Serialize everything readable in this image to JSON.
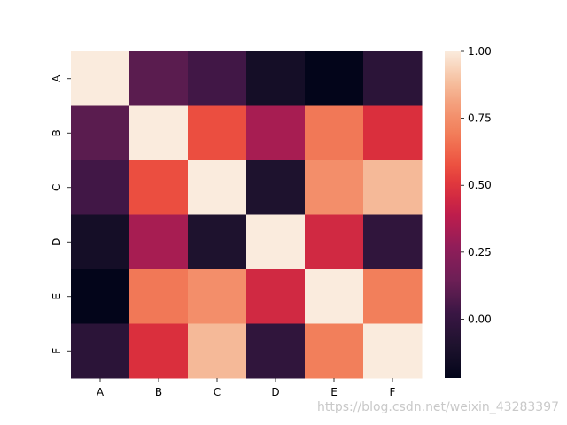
{
  "chart_data": {
    "type": "heatmap",
    "title": "",
    "xlabel": "",
    "ylabel": "",
    "x_categories": [
      "A",
      "B",
      "C",
      "D",
      "E",
      "F"
    ],
    "y_categories": [
      "A",
      "B",
      "C",
      "D",
      "E",
      "F"
    ],
    "values": [
      [
        1.0,
        0.1,
        0.04,
        -0.14,
        -0.22,
        -0.04
      ],
      [
        0.1,
        1.0,
        0.57,
        0.33,
        0.68,
        0.48
      ],
      [
        0.04,
        0.57,
        1.0,
        -0.1,
        0.75,
        0.87
      ],
      [
        -0.14,
        0.33,
        -0.1,
        1.0,
        0.45,
        -0.02
      ],
      [
        -0.22,
        0.68,
        0.75,
        0.45,
        1.0,
        0.7
      ],
      [
        -0.04,
        0.48,
        0.87,
        -0.02,
        0.7,
        1.0
      ]
    ],
    "colorbar": {
      "min": -0.22,
      "max": 1.0,
      "ticks": [
        1.0,
        0.75,
        0.5,
        0.25,
        0.0
      ],
      "tick_labels": [
        "1.00",
        "0.75",
        "0.50",
        "0.25",
        "0.00"
      ],
      "colormap": "rocket"
    },
    "grid": false
  },
  "watermark": "https://blog.csdn.net/weixin_43283397"
}
